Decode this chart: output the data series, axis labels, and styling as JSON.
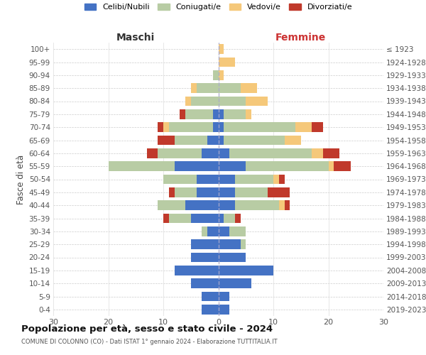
{
  "age_groups": [
    "0-4",
    "5-9",
    "10-14",
    "15-19",
    "20-24",
    "25-29",
    "30-34",
    "35-39",
    "40-44",
    "45-49",
    "50-54",
    "55-59",
    "60-64",
    "65-69",
    "70-74",
    "75-79",
    "80-84",
    "85-89",
    "90-94",
    "95-99",
    "100+"
  ],
  "birth_years": [
    "2019-2023",
    "2014-2018",
    "2009-2013",
    "2004-2008",
    "1999-2003",
    "1994-1998",
    "1989-1993",
    "1984-1988",
    "1979-1983",
    "1974-1978",
    "1969-1973",
    "1964-1968",
    "1959-1963",
    "1954-1958",
    "1949-1953",
    "1944-1948",
    "1939-1943",
    "1934-1938",
    "1929-1933",
    "1924-1928",
    "≤ 1923"
  ],
  "colors": {
    "celibi": "#4472c4",
    "coniugati": "#b8cca4",
    "vedovi": "#f5c87a",
    "divorziati": "#c0392b"
  },
  "males": {
    "celibi": [
      3,
      3,
      5,
      8,
      5,
      5,
      2,
      5,
      6,
      4,
      4,
      8,
      3,
      2,
      1,
      1,
      0,
      0,
      0,
      0,
      0
    ],
    "coniugati": [
      0,
      0,
      0,
      0,
      0,
      0,
      1,
      4,
      5,
      4,
      6,
      12,
      8,
      6,
      8,
      5,
      5,
      4,
      1,
      0,
      0
    ],
    "vedovi": [
      0,
      0,
      0,
      0,
      0,
      0,
      0,
      0,
      0,
      0,
      0,
      0,
      0,
      0,
      1,
      0,
      1,
      1,
      0,
      0,
      0
    ],
    "divorziati": [
      0,
      0,
      0,
      0,
      0,
      0,
      0,
      1,
      0,
      1,
      0,
      0,
      2,
      3,
      1,
      1,
      0,
      0,
      0,
      0,
      0
    ]
  },
  "females": {
    "nubili": [
      2,
      2,
      6,
      10,
      5,
      4,
      2,
      1,
      3,
      3,
      3,
      5,
      2,
      1,
      1,
      1,
      0,
      0,
      0,
      0,
      0
    ],
    "coniugate": [
      0,
      0,
      0,
      0,
      0,
      1,
      3,
      2,
      8,
      6,
      7,
      15,
      15,
      11,
      13,
      4,
      5,
      4,
      0,
      0,
      0
    ],
    "vedove": [
      0,
      0,
      0,
      0,
      0,
      0,
      0,
      0,
      1,
      0,
      1,
      1,
      2,
      3,
      3,
      1,
      4,
      3,
      1,
      3,
      1
    ],
    "divorziate": [
      0,
      0,
      0,
      0,
      0,
      0,
      0,
      1,
      1,
      4,
      1,
      3,
      3,
      0,
      2,
      0,
      0,
      0,
      0,
      0,
      0
    ]
  },
  "xlim": 30,
  "title": "Popolazione per età, sesso e stato civile - 2024",
  "subtitle": "COMUNE DI COLONNO (CO) - Dati ISTAT 1° gennaio 2024 - Elaborazione TUTTITALIA.IT",
  "ylabel_left": "Fasce di età",
  "xlabel_left": "Maschi",
  "xlabel_right": "Femmine",
  "legend_labels": [
    "Celibi/Nubili",
    "Coniugati/e",
    "Vedovi/e",
    "Divorziati/e"
  ],
  "background_color": "#ffffff"
}
